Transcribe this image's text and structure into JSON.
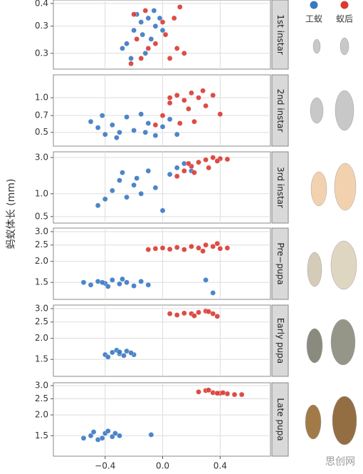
{
  "y_label": "蚂蚁体长 (mm)",
  "watermark": "思创网",
  "chart_data": [
    {
      "type": "scatter",
      "title": "1st instar",
      "log_scale": true,
      "grid": true,
      "xlim": [
        -0.76,
        0.75
      ],
      "xticks": [
        {
          "value": -0.4,
          "label": "−0.4"
        },
        {
          "value": 0,
          "label": "0.0"
        },
        0.4
      ],
      "ylim": [
        0.25,
        0.41
      ],
      "yticks": [
        0.4,
        {
          "value": 0.34,
          "label": "0.3"
        },
        {
          "value": 0.28,
          "label": "0.3"
        }
      ],
      "series": [
        {
          "name": "工蚁",
          "color": "#3a78c2",
          "x": [
            -0.25,
            -0.2,
            -0.15,
            -0.1,
            -0.05,
            0,
            -0.22,
            -0.12,
            -0.08,
            -0.18,
            -0.02,
            -0.28,
            -0.06,
            -0.14
          ],
          "values": [
            0.3,
            0.33,
            0.35,
            0.36,
            0.34,
            0.33,
            0.27,
            0.28,
            0.31,
            0.37,
            0.36,
            0.29,
            0.38,
            0.32
          ]
        },
        {
          "name": "蚁后",
          "color": "#d83a32",
          "x": [
            -0.22,
            -0.15,
            -0.1,
            -0.05,
            0.02,
            0.08,
            0.12,
            0.15,
            -0.18,
            0.05,
            -0.12,
            0.0,
            0.1,
            -0.2
          ],
          "values": [
            0.26,
            0.27,
            0.29,
            0.3,
            0.32,
            0.36,
            0.39,
            0.28,
            0.31,
            0.27,
            0.38,
            0.35,
            0.29,
            0.37
          ]
        }
      ]
    },
    {
      "type": "scatter",
      "title": "2nd instar",
      "log_scale": true,
      "grid": true,
      "xlim": [
        -0.76,
        0.75
      ],
      "xticks": [
        {
          "value": -0.4,
          "label": "−0.4"
        },
        {
          "value": 0,
          "label": "0.0"
        },
        0.4
      ],
      "ylim": [
        0.38,
        1.58
      ],
      "yticks": [
        {
          "value": 1,
          "label": "1.0"
        },
        0.7,
        0.5
      ],
      "series": [
        {
          "color": "#3a78c2",
          "x": [
            -0.5,
            -0.45,
            -0.4,
            -0.35,
            -0.3,
            -0.25,
            -0.2,
            -0.15,
            -0.1,
            -0.05,
            0.0,
            0.05,
            -0.32,
            -0.12,
            -0.42,
            0.1
          ],
          "values": [
            0.62,
            0.55,
            0.48,
            0.58,
            0.5,
            0.68,
            0.52,
            0.72,
            0.6,
            0.47,
            0.56,
            0.65,
            0.45,
            0.5,
            0.7,
            0.48
          ]
        },
        {
          "color": "#d83a32",
          "x": [
            -0.05,
            0.0,
            0.05,
            0.1,
            0.15,
            0.2,
            0.25,
            0.3,
            0.35,
            0.4,
            0.12,
            0.28,
            0.18,
            0.05,
            0.22
          ],
          "values": [
            0.58,
            0.7,
            0.9,
            1.05,
            0.95,
            1.1,
            1.0,
            0.85,
            1.05,
            0.72,
            0.6,
            1.15,
            0.8,
            1.0,
            0.62
          ]
        }
      ]
    },
    {
      "type": "scatter",
      "title": "3rd instar",
      "log_scale": true,
      "grid": true,
      "xlim": [
        -0.76,
        0.75
      ],
      "xticks": [
        {
          "value": -0.4,
          "label": "−0.4"
        },
        {
          "value": 0,
          "label": "0.0"
        },
        0.4
      ],
      "ylim": [
        0.41,
        3.57
      ],
      "yticks": [
        {
          "value": 3,
          "label": "3.0"
        },
        {
          "value": 1,
          "label": "1.0"
        },
        0.5
      ],
      "series": [
        {
          "color": "#3a78c2",
          "x": [
            -0.45,
            -0.4,
            -0.35,
            -0.3,
            -0.25,
            -0.2,
            -0.15,
            -0.1,
            -0.05,
            0.0,
            0.05,
            0.1,
            0.15,
            -0.28,
            -0.18,
            0.2
          ],
          "values": [
            0.7,
            0.85,
            1.1,
            1.5,
            0.9,
            1.3,
            1.0,
            2.0,
            1.2,
            0.6,
            1.8,
            2.2,
            2.5,
            1.9,
            1.6,
            2.0
          ]
        },
        {
          "color": "#d83a32",
          "x": [
            0.1,
            0.15,
            0.2,
            0.25,
            0.3,
            0.35,
            0.4,
            0.45,
            0.22,
            0.32,
            0.18,
            0.38
          ],
          "values": [
            1.7,
            2.0,
            2.3,
            2.6,
            2.8,
            3.0,
            2.9,
            2.85,
            1.9,
            2.2,
            2.5,
            2.7
          ]
        }
      ]
    },
    {
      "type": "scatter",
      "title": "Pre−pupa",
      "log_scale": true,
      "grid": true,
      "xlim": [
        -0.76,
        0.75
      ],
      "xticks": [
        {
          "value": -0.4,
          "label": "−0.4"
        },
        {
          "value": 0,
          "label": "0.0"
        },
        0.4
      ],
      "ylim": [
        1.19,
        3.15
      ],
      "yticks": [
        {
          "value": 3,
          "label": "3.0"
        },
        2.5,
        {
          "value": 2,
          "label": "2.0"
        },
        1.5
      ],
      "series": [
        {
          "color": "#3a78c2",
          "x": [
            -0.55,
            -0.5,
            -0.45,
            -0.4,
            -0.35,
            -0.3,
            -0.25,
            -0.2,
            -0.15,
            -0.1,
            -0.38,
            -0.28,
            -0.42,
            0.3,
            0.35
          ],
          "values": [
            1.5,
            1.45,
            1.52,
            1.48,
            1.55,
            1.47,
            1.5,
            1.43,
            1.52,
            1.45,
            1.42,
            1.57,
            1.5,
            1.55,
            1.3
          ]
        },
        {
          "color": "#d83a32",
          "x": [
            -0.1,
            -0.05,
            0.0,
            0.05,
            0.1,
            0.15,
            0.2,
            0.25,
            0.3,
            0.35,
            0.4,
            0.45,
            0.28,
            0.38
          ],
          "values": [
            2.35,
            2.38,
            2.4,
            2.36,
            2.42,
            2.35,
            2.45,
            2.4,
            2.5,
            2.45,
            2.38,
            2.4,
            2.3,
            2.55
          ]
        }
      ]
    },
    {
      "type": "scatter",
      "title": "Early pupa",
      "log_scale": true,
      "grid": true,
      "xlim": [
        -0.76,
        0.75
      ],
      "xticks": [
        {
          "value": -0.4,
          "label": "−0.4"
        },
        {
          "value": 0,
          "label": "0.0"
        },
        0.4
      ],
      "ylim": [
        1.19,
        3.15
      ],
      "yticks": [
        {
          "value": 3,
          "label": "3.0"
        },
        2.5,
        {
          "value": 2,
          "label": "2.0"
        },
        1.5
      ],
      "series": [
        {
          "color": "#3a78c2",
          "x": [
            -0.4,
            -0.35,
            -0.3,
            -0.25,
            -0.2,
            -0.38,
            -0.32,
            -0.27,
            -0.22,
            -0.3
          ],
          "values": [
            1.6,
            1.65,
            1.62,
            1.68,
            1.6,
            1.55,
            1.7,
            1.58,
            1.64,
            1.66
          ]
        },
        {
          "color": "#d83a32",
          "x": [
            0.05,
            0.1,
            0.15,
            0.2,
            0.25,
            0.3,
            0.35,
            0.38,
            0.22,
            0.32
          ],
          "values": [
            2.8,
            2.75,
            2.82,
            2.8,
            2.85,
            2.9,
            2.8,
            2.7,
            2.72,
            2.88
          ]
        }
      ]
    },
    {
      "type": "scatter",
      "title": "Late pupa",
      "log_scale": true,
      "grid": true,
      "xlim": [
        -0.76,
        0.75
      ],
      "xticks": [
        {
          "value": -0.4,
          "label": "−0.4"
        },
        {
          "value": 0,
          "label": "0.0"
        },
        0.4
      ],
      "ylim": [
        1.13,
        3.12
      ],
      "yticks": [
        {
          "value": 3,
          "label": "3.0"
        },
        2.5,
        {
          "value": 2,
          "label": "2.0"
        },
        1.5
      ],
      "series": [
        {
          "color": "#3a78c2",
          "x": [
            -0.55,
            -0.5,
            -0.45,
            -0.4,
            -0.35,
            -0.3,
            -0.48,
            -0.38,
            -0.42,
            -0.08,
            -0.33
          ],
          "values": [
            1.45,
            1.5,
            1.42,
            1.55,
            1.48,
            1.5,
            1.58,
            1.6,
            1.45,
            1.52,
            1.55
          ]
        },
        {
          "color": "#d83a32",
          "x": [
            0.25,
            0.3,
            0.35,
            0.4,
            0.45,
            0.5,
            0.55,
            0.32,
            0.42,
            0.38
          ],
          "values": [
            2.75,
            2.8,
            2.72,
            2.7,
            2.68,
            2.65,
            2.65,
            2.82,
            2.72,
            2.7
          ]
        }
      ]
    }
  ]
}
